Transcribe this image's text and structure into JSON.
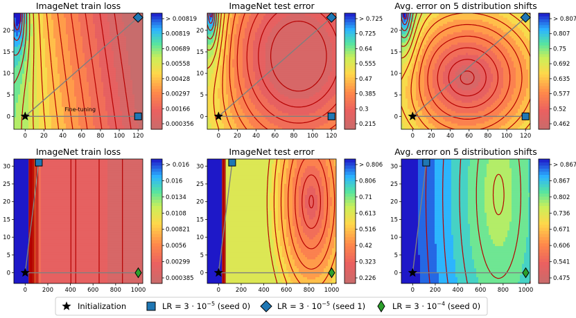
{
  "legend": {
    "items": [
      {
        "label": "Initialization",
        "marker": "star",
        "color": "#000000"
      },
      {
        "label": "LR $= 3\\cdot 10^{-5}$ (seed 0)",
        "text_parts": [
          "LR ",
          "= 3 · 10",
          "−5",
          " (seed 0)"
        ],
        "marker": "square",
        "color": "#1f77b4"
      },
      {
        "label": "LR $= 3\\cdot 10^{-5}$ (seed 1)",
        "text_parts": [
          "LR ",
          "= 3 · 10",
          "−5",
          " (seed 1)"
        ],
        "marker": "diamond",
        "color": "#1f77b4"
      },
      {
        "label": "LR $= 3\\cdot 10^{-4}$ (seed 0)",
        "text_parts": [
          "LR ",
          "= 3 · 10",
          "−4",
          " (seed 0)"
        ],
        "marker": "thin_diamond",
        "color": "#2ca02c"
      }
    ]
  },
  "colors": {
    "path_line": "#7f7f7f",
    "contour_line": "#b50000",
    "marker_blue": "#1f77b4",
    "marker_green": "#2ca02c"
  },
  "chart_data": [
    {
      "type": "heatmap",
      "title": "ImageNet train loss",
      "row": 0,
      "xlim": [
        -12,
        125
      ],
      "ylim": [
        -3,
        24
      ],
      "xticks": [
        0,
        20,
        40,
        60,
        80,
        100,
        120
      ],
      "yticks": [
        0,
        5,
        10,
        15,
        20
      ],
      "colorbar": {
        "ticks": [
          "> 0.00819",
          "0.00819",
          "0.00689",
          "0.00558",
          "0.00428",
          "0.00297",
          "0.00166",
          "0.000356"
        ]
      },
      "points": {
        "initialization": [
          0,
          0
        ],
        "lr_3e-5_seed0": [
          120,
          0
        ],
        "lr_3e-5_seed1": [
          120,
          23
        ]
      },
      "annotation": {
        "text": "Fine-tuning",
        "x": 42,
        "y": 1.2
      }
    },
    {
      "type": "heatmap",
      "title": "ImageNet test error",
      "row": 0,
      "xlim": [
        -12,
        125
      ],
      "ylim": [
        -3,
        24
      ],
      "xticks": [
        0,
        20,
        40,
        60,
        80,
        100,
        120
      ],
      "yticks": [
        0,
        5,
        10,
        15,
        20
      ],
      "colorbar": {
        "ticks": [
          "> 0.725",
          "0.725",
          "0.64",
          "0.555",
          "0.47",
          "0.385",
          "0.3",
          "0.215"
        ]
      },
      "points": {
        "initialization": [
          0,
          0
        ],
        "lr_3e-5_seed0": [
          120,
          0
        ],
        "lr_3e-5_seed1": [
          120,
          23
        ]
      }
    },
    {
      "type": "heatmap",
      "title": "Avg. error on 5 distribution shifts",
      "row": 0,
      "xlim": [
        -12,
        125
      ],
      "ylim": [
        -3,
        24
      ],
      "xticks": [
        0,
        20,
        40,
        60,
        80,
        100,
        120
      ],
      "yticks": [
        0,
        5,
        10,
        15,
        20
      ],
      "colorbar": {
        "ticks": [
          "> 0.807",
          "0.807",
          "0.75",
          "0.692",
          "0.635",
          "0.577",
          "0.52",
          "0.462"
        ]
      },
      "points": {
        "initialization": [
          0,
          0
        ],
        "lr_3e-5_seed0": [
          120,
          0
        ],
        "lr_3e-5_seed1": [
          120,
          23
        ]
      }
    },
    {
      "type": "heatmap",
      "title": "ImageNet train loss",
      "row": 1,
      "xlim": [
        -100,
        1040
      ],
      "ylim": [
        -3,
        32
      ],
      "xticks": [
        0,
        200,
        400,
        600,
        800,
        1000
      ],
      "yticks": [
        0,
        5,
        10,
        15,
        20,
        25,
        30
      ],
      "colorbar": {
        "ticks": [
          "> 0.016",
          "0.016",
          "0.0134",
          "0.0108",
          "0.00821",
          "0.0056",
          "0.00299",
          "0.000385"
        ]
      },
      "points": {
        "initialization": [
          0,
          0
        ],
        "lr_3e-5_seed0": [
          120,
          31
        ],
        "lr_3e-4_seed0": [
          1000,
          0
        ]
      }
    },
    {
      "type": "heatmap",
      "title": "ImageNet test error",
      "row": 1,
      "xlim": [
        -100,
        1040
      ],
      "ylim": [
        -3,
        32
      ],
      "xticks": [
        0,
        200,
        400,
        600,
        800,
        1000
      ],
      "yticks": [
        0,
        5,
        10,
        15,
        20,
        25,
        30
      ],
      "colorbar": {
        "ticks": [
          "> 0.806",
          "0.806",
          "0.71",
          "0.613",
          "0.516",
          "0.42",
          "0.323",
          "0.226"
        ]
      },
      "points": {
        "initialization": [
          0,
          0
        ],
        "lr_3e-5_seed0": [
          120,
          31
        ],
        "lr_3e-4_seed0": [
          1000,
          0
        ]
      }
    },
    {
      "type": "heatmap",
      "title": "Avg. error on 5 distribution shifts",
      "row": 1,
      "xlim": [
        -100,
        1040
      ],
      "ylim": [
        -3,
        32
      ],
      "xticks": [
        0,
        200,
        400,
        600,
        800,
        1000
      ],
      "yticks": [
        0,
        5,
        10,
        15,
        20,
        25,
        30
      ],
      "colorbar": {
        "ticks": [
          "> 0.867",
          "0.867",
          "0.802",
          "0.736",
          "0.671",
          "0.606",
          "0.541",
          "0.475"
        ]
      },
      "points": {
        "initialization": [
          0,
          0
        ],
        "lr_3e-5_seed0": [
          120,
          31
        ],
        "lr_3e-4_seed0": [
          1000,
          0
        ]
      }
    }
  ]
}
